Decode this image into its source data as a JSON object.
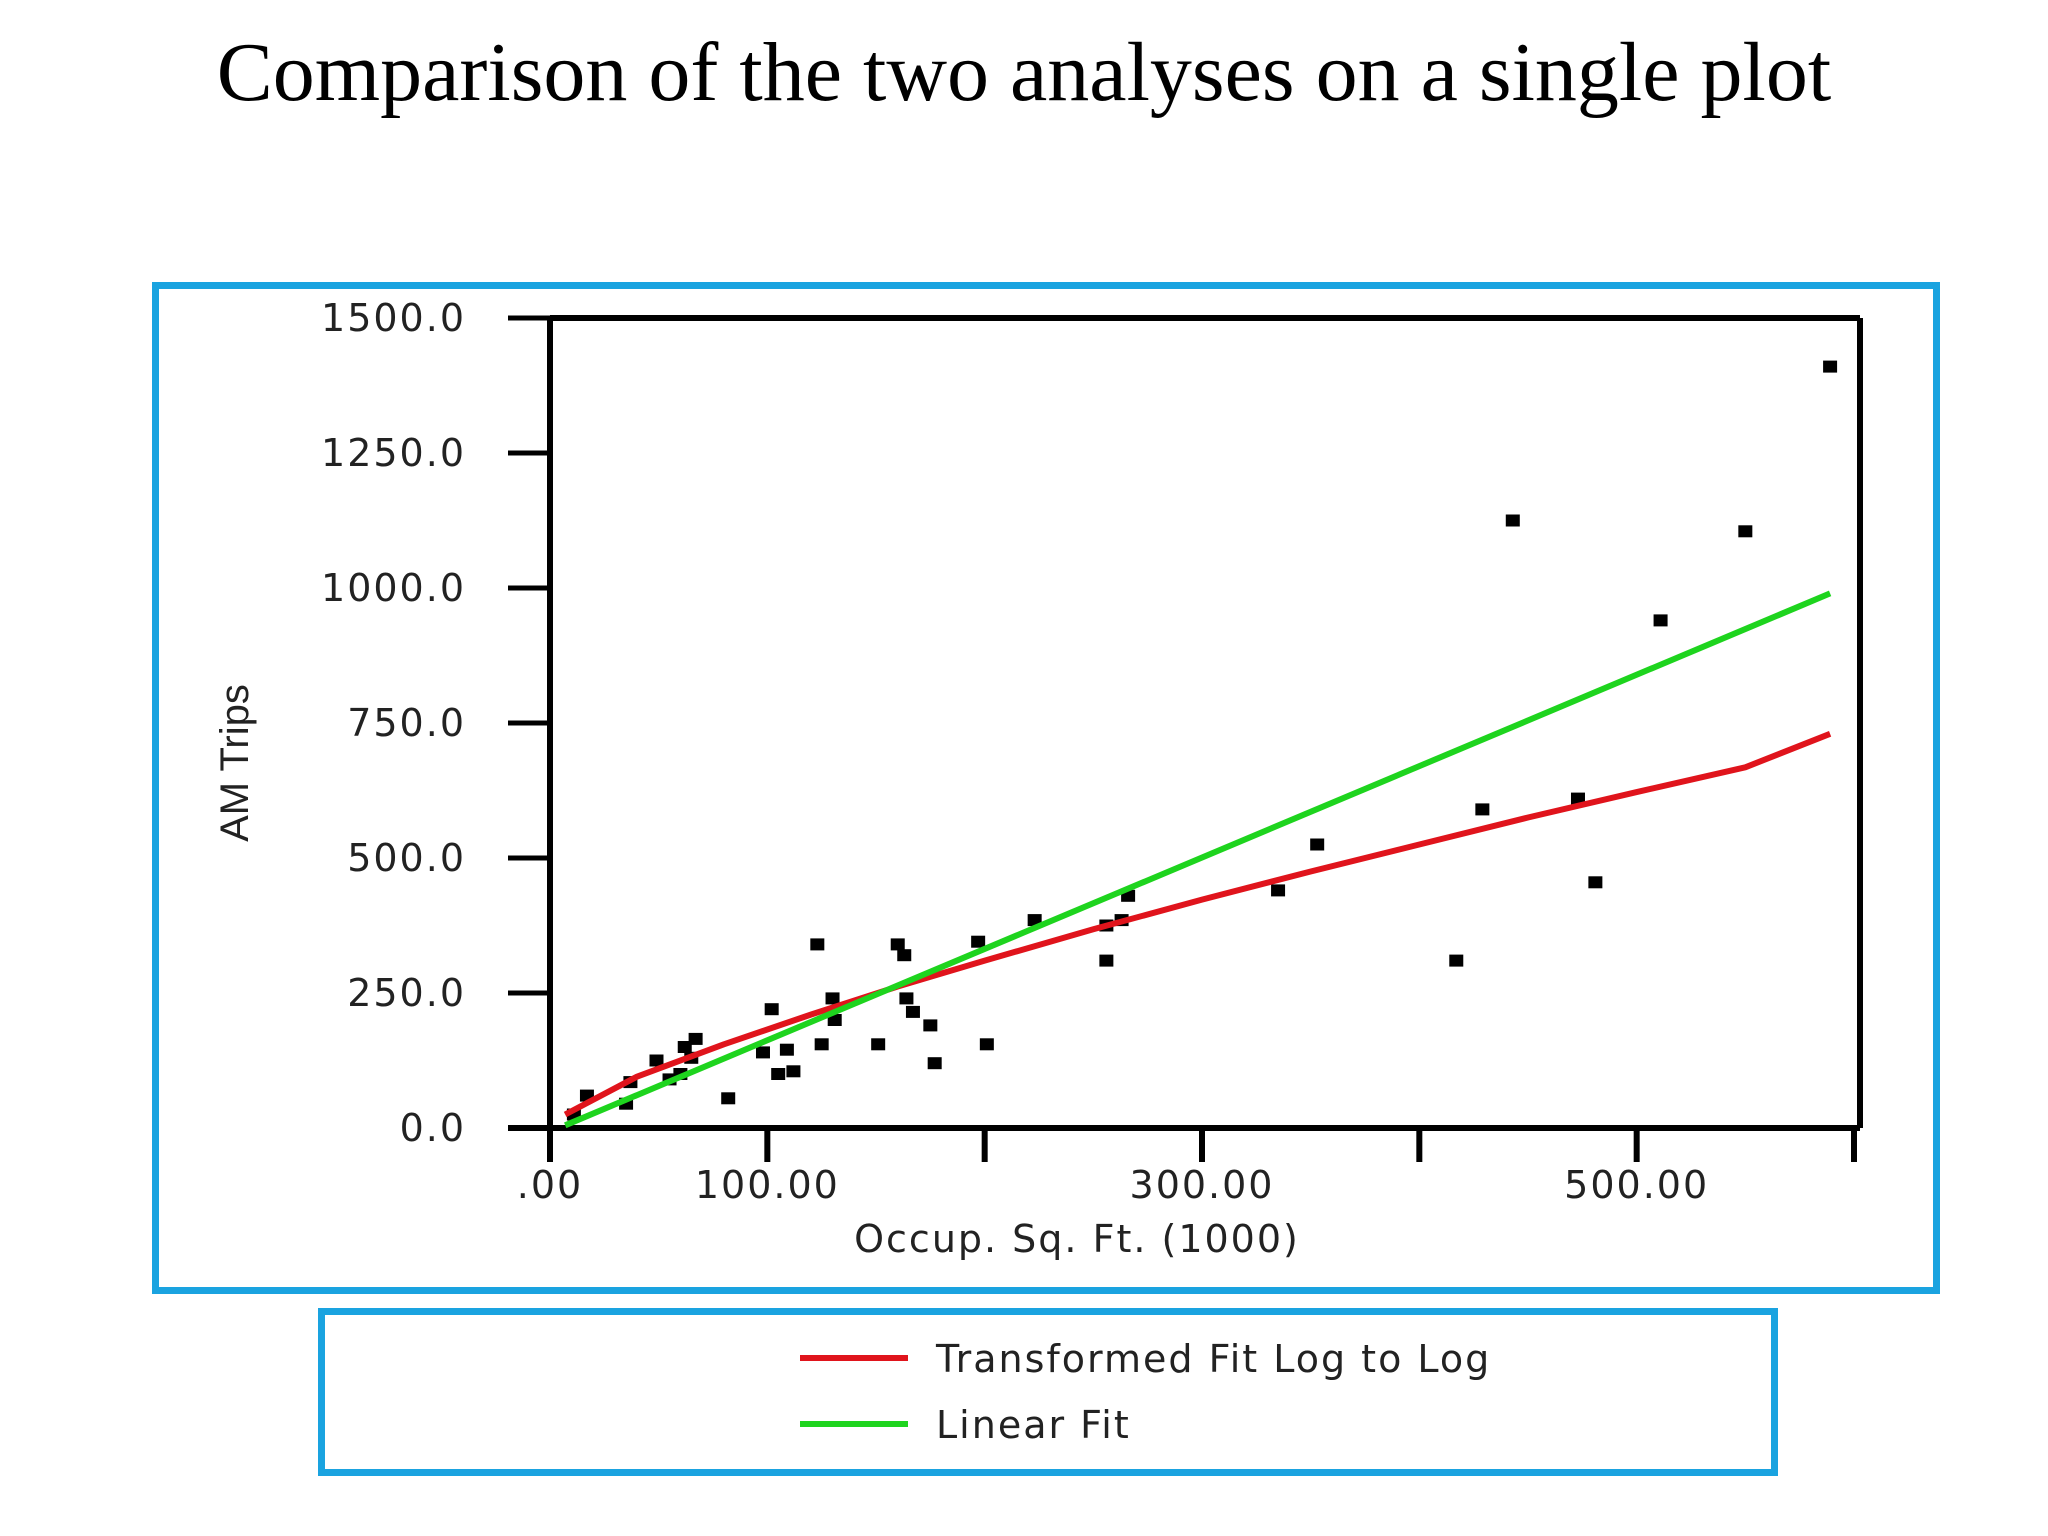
{
  "slide": {
    "title": "Comparison of the two analyses on a single plot"
  },
  "chart_data": {
    "type": "scatter",
    "xlabel": "Occup. Sq. Ft. (1000)",
    "ylabel": "AM Trips",
    "xlim": [
      0,
      600
    ],
    "ylim": [
      0,
      1500
    ],
    "x_ticks": [
      {
        "value": 0,
        "label": ".00"
      },
      {
        "value": 100,
        "label": "100.00"
      },
      {
        "value": 200,
        "label": ""
      },
      {
        "value": 300,
        "label": "300.00"
      },
      {
        "value": 400,
        "label": ""
      },
      {
        "value": 500,
        "label": "500.00"
      },
      {
        "value": 600,
        "label": ""
      }
    ],
    "y_ticks": [
      {
        "value": 0,
        "label": "0.0"
      },
      {
        "value": 250,
        "label": "250.0"
      },
      {
        "value": 500,
        "label": "500.0"
      },
      {
        "value": 750,
        "label": "750.0"
      },
      {
        "value": 1000,
        "label": "1000.0"
      },
      {
        "value": 1250,
        "label": "1250.0"
      },
      {
        "value": 1500,
        "label": "1500.0"
      }
    ],
    "grid": false,
    "legend_position": "bottom",
    "points": [
      {
        "x": 11,
        "y": 25
      },
      {
        "x": 17,
        "y": 60
      },
      {
        "x": 35,
        "y": 45
      },
      {
        "x": 37,
        "y": 85
      },
      {
        "x": 49,
        "y": 125
      },
      {
        "x": 55,
        "y": 90
      },
      {
        "x": 60,
        "y": 100
      },
      {
        "x": 62,
        "y": 150
      },
      {
        "x": 65,
        "y": 130
      },
      {
        "x": 67,
        "y": 165
      },
      {
        "x": 82,
        "y": 55
      },
      {
        "x": 98,
        "y": 140
      },
      {
        "x": 102,
        "y": 220
      },
      {
        "x": 105,
        "y": 100
      },
      {
        "x": 109,
        "y": 145
      },
      {
        "x": 112,
        "y": 105
      },
      {
        "x": 123,
        "y": 340
      },
      {
        "x": 125,
        "y": 155
      },
      {
        "x": 130,
        "y": 240
      },
      {
        "x": 131,
        "y": 200
      },
      {
        "x": 151,
        "y": 155
      },
      {
        "x": 160,
        "y": 340
      },
      {
        "x": 163,
        "y": 320
      },
      {
        "x": 164,
        "y": 240
      },
      {
        "x": 167,
        "y": 215
      },
      {
        "x": 175,
        "y": 190
      },
      {
        "x": 177,
        "y": 120
      },
      {
        "x": 197,
        "y": 345
      },
      {
        "x": 201,
        "y": 155
      },
      {
        "x": 223,
        "y": 385
      },
      {
        "x": 256,
        "y": 310
      },
      {
        "x": 256,
        "y": 375
      },
      {
        "x": 263,
        "y": 385
      },
      {
        "x": 266,
        "y": 430
      },
      {
        "x": 335,
        "y": 440
      },
      {
        "x": 353,
        "y": 525
      },
      {
        "x": 417,
        "y": 310
      },
      {
        "x": 429,
        "y": 590
      },
      {
        "x": 443,
        "y": 1125
      },
      {
        "x": 473,
        "y": 610
      },
      {
        "x": 481,
        "y": 455
      },
      {
        "x": 511,
        "y": 940
      },
      {
        "x": 550,
        "y": 1105
      },
      {
        "x": 589,
        "y": 1410
      }
    ],
    "series": [
      {
        "name": "Transformed Fit Log to Log",
        "type": "line",
        "color": "#e0141c",
        "x": [
          7,
          40,
          80,
          120,
          160,
          200,
          250,
          300,
          350,
          400,
          450,
          500,
          550,
          589
        ],
        "y": [
          25,
          95,
          155,
          210,
          262,
          310,
          368,
          423,
          475,
          525,
          575,
          622,
          668,
          730
        ]
      },
      {
        "name": "Linear Fit",
        "type": "line",
        "color": "#1ed41e",
        "x": [
          7,
          589
        ],
        "y": [
          5,
          990
        ]
      }
    ]
  }
}
